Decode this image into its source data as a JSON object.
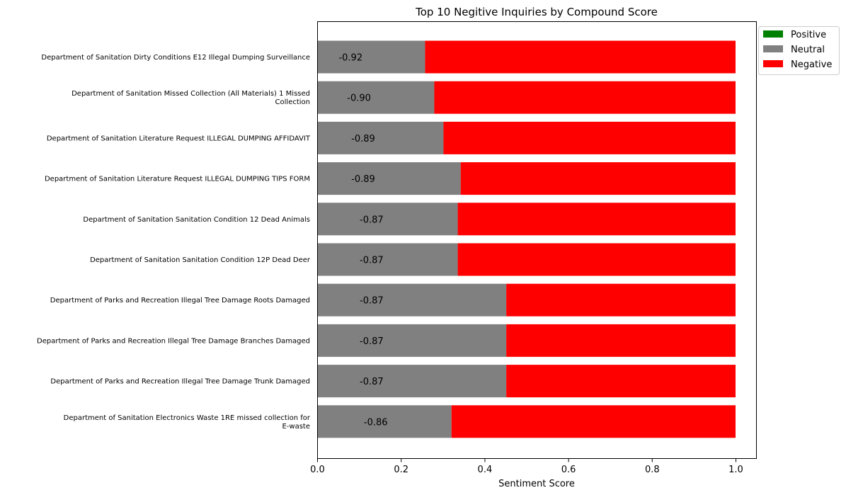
{
  "chart_data": {
    "type": "bar",
    "orientation": "horizontal",
    "stacked": true,
    "title": "Top 10 Negitive Inquiries by Compound Score",
    "xlabel": "Sentiment Score",
    "ylabel": "",
    "xlim": [
      0,
      1.05
    ],
    "xticks": [
      "0.0",
      "0.2",
      "0.4",
      "0.6",
      "0.8",
      "1.0"
    ],
    "grid": false,
    "legend_position": "outside-top-right",
    "categories": [
      [
        "Department of Sanitation Dirty Conditions E12 Illegal Dumping Surveillance"
      ],
      [
        "Department of Sanitation Missed Collection (All Materials) 1 Missed",
        "Collection"
      ],
      [
        "Department of Sanitation Literature Request ILLEGAL DUMPING AFFIDAVIT"
      ],
      [
        "Department of Sanitation Literature Request ILLEGAL DUMPING TIPS FORM"
      ],
      [
        "Department of Sanitation Sanitation Condition 12 Dead Animals"
      ],
      [
        "Department of Sanitation Sanitation Condition 12P Dead Deer"
      ],
      [
        "Department of Parks and Recreation Illegal Tree Damage Roots Damaged"
      ],
      [
        "Department of Parks and Recreation Illegal Tree Damage Branches Damaged"
      ],
      [
        "Department of Parks and Recreation Illegal Tree Damage Trunk Damaged"
      ],
      [
        "Department of Sanitation Electronics Waste 1RE missed collection for",
        "E-waste"
      ]
    ],
    "series": [
      {
        "name": "Positive",
        "color": "#008000",
        "values": [
          0,
          0,
          0,
          0,
          0,
          0,
          0,
          0,
          0,
          0
        ]
      },
      {
        "name": "Neutral",
        "color": "#808080",
        "values": [
          0.258,
          0.28,
          0.302,
          0.343,
          0.336,
          0.336,
          0.452,
          0.452,
          0.452,
          0.321
        ]
      },
      {
        "name": "Negative",
        "color": "#ff0000",
        "values": [
          0.742,
          0.72,
          0.698,
          0.657,
          0.664,
          0.664,
          0.548,
          0.548,
          0.548,
          0.679
        ]
      }
    ],
    "compound_labels": [
      "-0.92",
      "-0.90",
      "-0.89",
      "-0.89",
      "-0.87",
      "-0.87",
      "-0.87",
      "-0.87",
      "-0.87",
      "-0.86"
    ],
    "compound_values": [
      -0.92,
      -0.9,
      -0.89,
      -0.89,
      -0.87,
      -0.87,
      -0.87,
      -0.87,
      -0.87,
      -0.86
    ]
  }
}
